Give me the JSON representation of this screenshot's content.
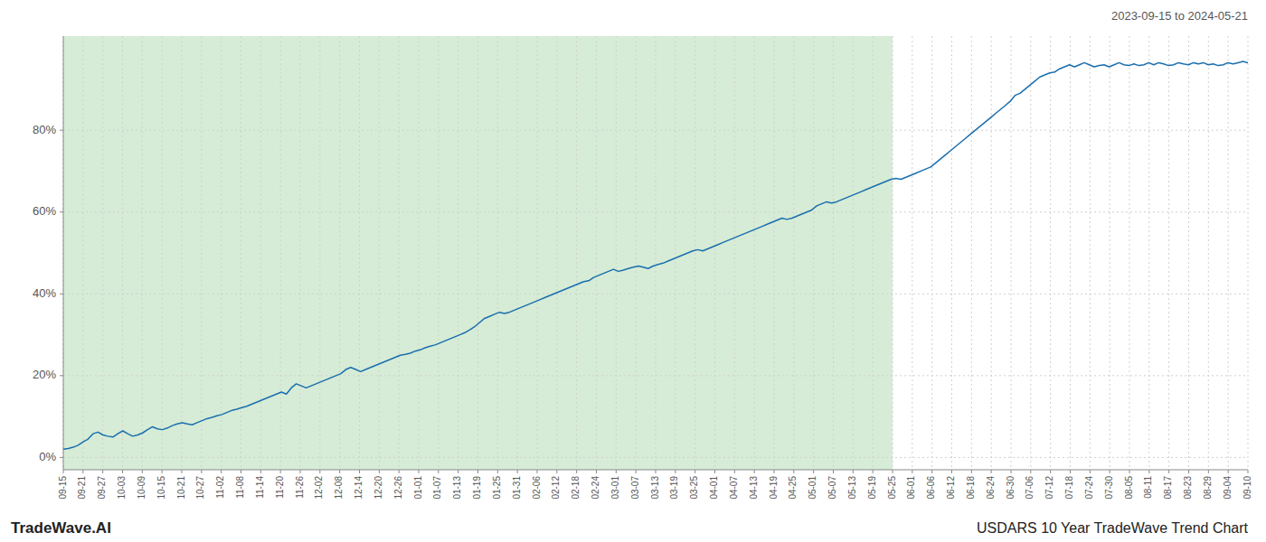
{
  "chart_data": {
    "type": "line",
    "title": "USDARS 10 Year TradeWave Trend Chart",
    "subtitle": "2023-09-15 to 2024-05-21",
    "annotations": [
      "TradeWave.AI"
    ],
    "color": "#1a6faf",
    "grid": true,
    "span": {
      "x": [
        0,
        167.3
      ],
      "color": "#d6ecd6"
    },
    "xlim": [
      0,
      239
    ],
    "ylim": [
      -3,
      103
    ],
    "yticks": [
      {
        "value": 0,
        "label": "0%"
      },
      {
        "value": 20,
        "label": "20%"
      },
      {
        "value": 40,
        "label": "40%"
      },
      {
        "value": 60,
        "label": "60%"
      },
      {
        "value": 80,
        "label": "80%"
      }
    ],
    "xticks": [
      {
        "value": 0,
        "label": "09-15"
      },
      {
        "value": 3.9833333333,
        "label": "09-21"
      },
      {
        "value": 7.9666666667,
        "label": "09-27"
      },
      {
        "value": 11.95,
        "label": "10-03"
      },
      {
        "value": 15.9333333333,
        "label": "10-09"
      },
      {
        "value": 19.9166666667,
        "label": "10-15"
      },
      {
        "value": 23.9,
        "label": "10-21"
      },
      {
        "value": 27.8833333333,
        "label": "10-27"
      },
      {
        "value": 31.8666666667,
        "label": "11-02"
      },
      {
        "value": 35.85,
        "label": "11-08"
      },
      {
        "value": 39.8333333333,
        "label": "11-14"
      },
      {
        "value": 43.8166666667,
        "label": "11-20"
      },
      {
        "value": 47.8,
        "label": "11-26"
      },
      {
        "value": 51.7833333333,
        "label": "12-02"
      },
      {
        "value": 55.7666666667,
        "label": "12-08"
      },
      {
        "value": 59.75,
        "label": "12-14"
      },
      {
        "value": 63.7333333333,
        "label": "12-20"
      },
      {
        "value": 67.7166666667,
        "label": "12-26"
      },
      {
        "value": 71.7,
        "label": "01-01"
      },
      {
        "value": 75.6833333333,
        "label": "01-07"
      },
      {
        "value": 79.6666666667,
        "label": "01-13"
      },
      {
        "value": 83.65,
        "label": "01-19"
      },
      {
        "value": 87.6333333333,
        "label": "01-25"
      },
      {
        "value": 91.6166666667,
        "label": "01-31"
      },
      {
        "value": 95.6,
        "label": "02-06"
      },
      {
        "value": 99.5833333333,
        "label": "02-12"
      },
      {
        "value": 103.5666666667,
        "label": "02-18"
      },
      {
        "value": 107.55,
        "label": "02-24"
      },
      {
        "value": 111.5333333333,
        "label": "03-01"
      },
      {
        "value": 115.5166666667,
        "label": "03-07"
      },
      {
        "value": 119.5,
        "label": "03-13"
      },
      {
        "value": 123.4833333333,
        "label": "03-19"
      },
      {
        "value": 127.4666666667,
        "label": "03-25"
      },
      {
        "value": 131.45,
        "label": "04-01"
      },
      {
        "value": 135.4333333333,
        "label": "04-07"
      },
      {
        "value": 139.4166666667,
        "label": "04-13"
      },
      {
        "value": 143.4,
        "label": "04-19"
      },
      {
        "value": 147.3833333333,
        "label": "04-25"
      },
      {
        "value": 151.3666666667,
        "label": "05-01"
      },
      {
        "value": 155.35,
        "label": "05-07"
      },
      {
        "value": 159.3333333333,
        "label": "05-13"
      },
      {
        "value": 163.3166666667,
        "label": "05-19"
      },
      {
        "value": 167.3,
        "label": "05-25"
      },
      {
        "value": 171.2833333333,
        "label": "06-01"
      },
      {
        "value": 175.2666666667,
        "label": "06-06"
      },
      {
        "value": 179.25,
        "label": "06-12"
      },
      {
        "value": 183.2333333333,
        "label": "06-18"
      },
      {
        "value": 187.2166666667,
        "label": "06-24"
      },
      {
        "value": 191.2,
        "label": "06-30"
      },
      {
        "value": 195.1833333333,
        "label": "07-06"
      },
      {
        "value": 199.1666666667,
        "label": "07-12"
      },
      {
        "value": 203.15,
        "label": "07-18"
      },
      {
        "value": 207.1333333333,
        "label": "07-24"
      },
      {
        "value": 211.1166666667,
        "label": "07-30"
      },
      {
        "value": 215.1,
        "label": "08-05"
      },
      {
        "value": 219.0833333333,
        "label": "08-11"
      },
      {
        "value": 223.0666666667,
        "label": "08-17"
      },
      {
        "value": 227.05,
        "label": "08-23"
      },
      {
        "value": 231.0333333333,
        "label": "08-29"
      },
      {
        "value": 235.0166666667,
        "label": "09-04"
      },
      {
        "value": 239,
        "label": "09-10"
      }
    ],
    "x": [
      0,
      1,
      2,
      3,
      4,
      5,
      6,
      7,
      8,
      9,
      10,
      11,
      12,
      13,
      14,
      15,
      16,
      17,
      18,
      19,
      20,
      21,
      22,
      23,
      24,
      25,
      26,
      27,
      28,
      29,
      30,
      31,
      32,
      33,
      34,
      35,
      36,
      37,
      38,
      39,
      40,
      41,
      42,
      43,
      44,
      45,
      46,
      47,
      48,
      49,
      50,
      51,
      52,
      53,
      54,
      55,
      56,
      57,
      58,
      59,
      60,
      61,
      62,
      63,
      64,
      65,
      66,
      67,
      68,
      69,
      70,
      71,
      72,
      73,
      74,
      75,
      76,
      77,
      78,
      79,
      80,
      81,
      82,
      83,
      84,
      85,
      86,
      87,
      88,
      89,
      90,
      91,
      92,
      93,
      94,
      95,
      96,
      97,
      98,
      99,
      100,
      101,
      102,
      103,
      104,
      105,
      106,
      107,
      108,
      109,
      110,
      111,
      112,
      113,
      114,
      115,
      116,
      117,
      118,
      119,
      120,
      121,
      122,
      123,
      124,
      125,
      126,
      127,
      128,
      129,
      130,
      131,
      132,
      133,
      134,
      135,
      136,
      137,
      138,
      139,
      140,
      141,
      142,
      143,
      144,
      145,
      146,
      147,
      148,
      149,
      150,
      151,
      152,
      153,
      154,
      155,
      156,
      157,
      158,
      159,
      160,
      161,
      162,
      163,
      164,
      165,
      166,
      167,
      168,
      169,
      170,
      171,
      172,
      173,
      174,
      175,
      176,
      177,
      178,
      179,
      180,
      181,
      182,
      183,
      184,
      185,
      186,
      187,
      188,
      189,
      190,
      191,
      192,
      193,
      194,
      195,
      196,
      197,
      198,
      199,
      200,
      201,
      202,
      203,
      204,
      205,
      206,
      207,
      208,
      209,
      210,
      211,
      212,
      213,
      214,
      215,
      216,
      217,
      218,
      219,
      220,
      221,
      222,
      223,
      224,
      225,
      226,
      227,
      228,
      229,
      230,
      231,
      232,
      233,
      234,
      235,
      236,
      237,
      238,
      239
    ],
    "values": [
      2.0,
      2.2,
      2.5,
      3.0,
      3.8,
      4.5,
      5.8,
      6.2,
      5.5,
      5.2,
      5.0,
      5.8,
      6.5,
      5.8,
      5.2,
      5.5,
      6.0,
      6.8,
      7.5,
      7.0,
      6.8,
      7.2,
      7.8,
      8.2,
      8.5,
      8.2,
      8.0,
      8.5,
      9.0,
      9.5,
      9.8,
      10.2,
      10.5,
      11.0,
      11.5,
      11.8,
      12.2,
      12.5,
      13.0,
      13.5,
      14.0,
      14.5,
      15.0,
      15.5,
      16.0,
      15.5,
      17.0,
      18.0,
      17.5,
      17.0,
      17.5,
      18.0,
      18.5,
      19.0,
      19.5,
      20.0,
      20.5,
      21.5,
      22.0,
      21.5,
      21.0,
      21.5,
      22.0,
      22.5,
      23.0,
      23.5,
      24.0,
      24.5,
      25.0,
      25.2,
      25.5,
      26.0,
      26.3,
      26.8,
      27.2,
      27.5,
      28.0,
      28.5,
      29.0,
      29.5,
      30.0,
      30.5,
      31.2,
      32.0,
      33.0,
      34.0,
      34.5,
      35.0,
      35.5,
      35.2,
      35.5,
      36.0,
      36.5,
      37.0,
      37.5,
      38.0,
      38.5,
      39.0,
      39.5,
      40.0,
      40.5,
      41.0,
      41.5,
      42.0,
      42.5,
      43.0,
      43.2,
      44.0,
      44.5,
      45.0,
      45.5,
      46.0,
      45.5,
      45.8,
      46.2,
      46.5,
      46.8,
      46.5,
      46.2,
      46.8,
      47.2,
      47.5,
      48.0,
      48.5,
      49.0,
      49.5,
      50.0,
      50.5,
      50.8,
      50.5,
      51.0,
      51.5,
      52.0,
      52.5,
      53.0,
      53.5,
      54.0,
      54.5,
      55.0,
      55.5,
      56.0,
      56.5,
      57.0,
      57.5,
      58.0,
      58.5,
      58.2,
      58.5,
      59.0,
      59.5,
      60.0,
      60.5,
      61.5,
      62.0,
      62.5,
      62.2,
      62.5,
      63.0,
      63.5,
      64.0,
      64.5,
      65.0,
      65.5,
      66.0,
      66.5,
      67.0,
      67.5,
      68.0,
      68.2,
      68.0,
      68.5,
      69.0,
      69.5,
      70.0,
      70.5,
      71.0,
      72.0,
      73.0,
      74.0,
      75.0,
      76.0,
      77.0,
      78.0,
      79.0,
      80.0,
      81.0,
      82.0,
      83.0,
      84.0,
      85.0,
      86.0,
      87.0,
      88.5,
      89.0,
      90.0,
      91.0,
      92.0,
      93.0,
      93.5,
      94.0,
      94.2,
      95.0,
      95.5,
      96.0,
      95.5,
      96.0,
      96.5,
      96.0,
      95.5,
      95.8,
      96.0,
      95.5,
      96.0,
      96.5,
      96.0,
      95.8,
      96.2,
      95.8,
      96.0,
      96.5,
      96.0,
      96.5,
      96.2,
      95.8,
      96.0,
      96.5,
      96.2,
      96.0,
      96.5,
      96.2,
      96.5,
      96.0,
      96.2,
      95.8,
      96.0,
      96.5,
      96.2,
      96.5,
      96.8,
      96.5
    ]
  }
}
